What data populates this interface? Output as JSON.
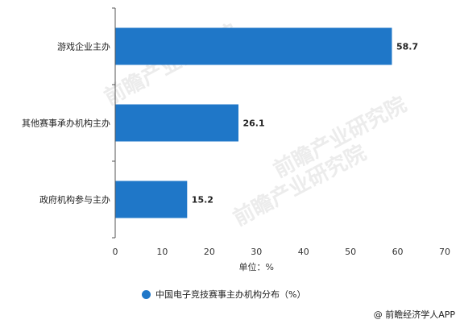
{
  "chart_data": {
    "type": "bar",
    "orientation": "horizontal",
    "categories": [
      "游戏企业主办",
      "其他赛事承办机构主办",
      "政府机构参与主办"
    ],
    "values": [
      58.7,
      26.1,
      15.2
    ],
    "value_labels": [
      "58.7",
      "26.1",
      "15.2"
    ],
    "xlabel": "单位：%",
    "xlim": [
      0,
      70
    ],
    "xticks": [
      0,
      10,
      20,
      30,
      40,
      50,
      60,
      70
    ],
    "grid": false,
    "legend_position": "bottom",
    "series": [
      {
        "name": "中国电子竞技赛事主办机构分布（%）",
        "color": "#1f77c8"
      }
    ]
  },
  "legend": {
    "label": "中国电子竞技赛事主办机构分布（%）"
  },
  "footer": {
    "source": "@ 前瞻经济学人APP"
  },
  "watermark": {
    "text": "前瞻产业研究院"
  }
}
